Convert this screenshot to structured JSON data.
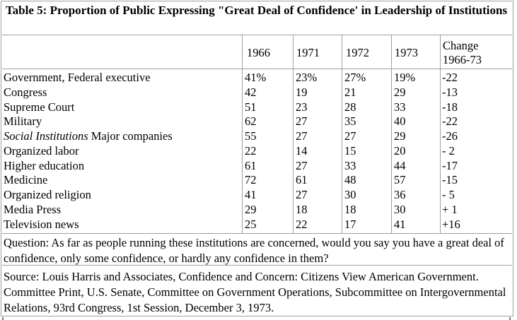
{
  "title": "Table 5: Proportion of Public Expressing \"Great Deal of Confidence' in Leadership of Institutions",
  "columns": [
    "1966",
    "1971",
    "1972",
    "1973",
    "Change 1966-73"
  ],
  "change_header_line1": "Change",
  "change_header_line2": "1966-73",
  "rows": [
    {
      "label": "Government, Federal executive",
      "v1966": "41%",
      "v1971": "23%",
      "v1972": "27%",
      "v1973": "19%",
      "change": "-22"
    },
    {
      "label": "Congress",
      "v1966": "42",
      "v1971": "19",
      "v1972": "21",
      "v1973": "29",
      "change": "-13"
    },
    {
      "label": "Supreme Court",
      "v1966": "51",
      "v1971": "23",
      "v1972": "28",
      "v1973": "33",
      "change": "-18"
    },
    {
      "label": "Military",
      "v1966": "62",
      "v1971": "27",
      "v1972": "35",
      "v1973": "40",
      "change": "-22"
    },
    {
      "label_italic": "Social Institutions",
      "label": " Major companies",
      "v1966": "55",
      "v1971": "27",
      "v1972": "27",
      "v1973": "29",
      "change": "-26"
    },
    {
      "label": "Organized labor",
      "v1966": "22",
      "v1971": "14",
      "v1972": "15",
      "v1973": "20",
      "change": "- 2"
    },
    {
      "label": "Higher education",
      "v1966": "61",
      "v1971": "27",
      "v1972": "33",
      "v1973": "44",
      "change": "-17"
    },
    {
      "label": "Medicine",
      "v1966": "72",
      "v1971": "61",
      "v1972": "48",
      "v1973": "57",
      "change": "-15"
    },
    {
      "label": "Organized religion",
      "v1966": "41",
      "v1971": "27",
      "v1972": "30",
      "v1973": "36",
      "change": "- 5"
    },
    {
      "label": "Media Press",
      "v1966": "29",
      "v1971": "18",
      "v1972": "18",
      "v1973": "30",
      "change": "+ 1"
    },
    {
      "label": "Television news",
      "v1966": "25",
      "v1971": "22",
      "v1972": "17",
      "v1973": "41",
      "change": "+16"
    }
  ],
  "question": "Question: As far as people running these institutions are concerned, would you say you have a great deal of confidence, only some confidence, or hardly any confidence in them?",
  "source": "Source: Louis Harris and Associates, Confidence and Concern: Citizens View American Government. Committee Print, U.S. Senate, Committee on Government Operations, Subcommittee on Intergovernmental Relations, 93rd Congress, 1st Session, December 3, 1973."
}
